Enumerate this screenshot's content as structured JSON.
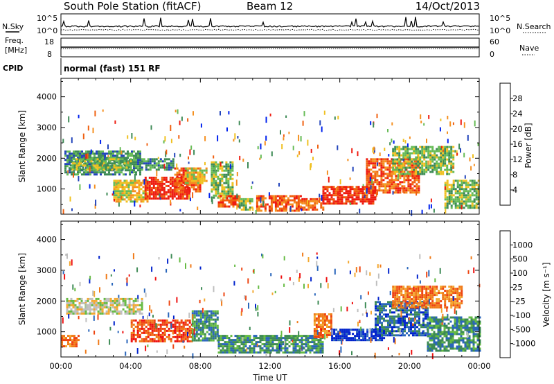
{
  "header": {
    "station": "South Pole Station (fitACF)",
    "beam": "Beam 12",
    "date": "14/Oct/2013"
  },
  "top_panels": {
    "nsky_label": "N.Sky",
    "nsky_ticks": [
      "10^5",
      "10^0"
    ],
    "nsearch_label": "N.Search",
    "nsearch_ticks": [
      "10^5",
      "10^0"
    ],
    "freq_label_1": "Freq.",
    "freq_label_2": "[MHz]",
    "freq_ticks": [
      "18",
      "8"
    ],
    "nave_label": "Nave",
    "nave_ticks": [
      "60",
      "0"
    ],
    "cpid_label": "CPID",
    "cpid_text": "normal (fast) 151 RF"
  },
  "colors": {
    "power": [
      "#0022ee",
      "#2244bb",
      "#3d8a55",
      "#66bb55",
      "#f0c020",
      "#f59020",
      "#f06010",
      "#ee1c10"
    ],
    "velocity": [
      "#ee1010",
      "#ee4410",
      "#f07a18",
      "#f3a830",
      "#bfbfbf",
      "#66bb44",
      "#3d8a55",
      "#2a66bb",
      "#0022cc"
    ]
  },
  "chart_data": [
    {
      "type": "heatmap",
      "name": "power",
      "ylabel": "Slant Range [km]",
      "yticks": [
        1000,
        2000,
        3000,
        4000
      ],
      "ylim": [
        180,
        4600
      ],
      "colorbar_label": "Power [dB]",
      "colorbar_ticks": [
        "4",
        "8",
        "12",
        "16",
        "20",
        "24",
        "28"
      ],
      "regions": [
        {
          "x0": 0.2,
          "x1": 4.6,
          "y0": 1500,
          "y1": 2250,
          "level": 2
        },
        {
          "x0": 0.5,
          "x1": 4.0,
          "y0": 1600,
          "y1": 2000,
          "level": 3
        },
        {
          "x0": 4.6,
          "x1": 6.5,
          "y0": 1600,
          "y1": 2000,
          "level": 2
        },
        {
          "x0": 3.0,
          "x1": 5.0,
          "y0": 600,
          "y1": 1300,
          "level": 4
        },
        {
          "x0": 4.8,
          "x1": 7.4,
          "y0": 700,
          "y1": 1400,
          "level": 7
        },
        {
          "x0": 6.5,
          "x1": 8.0,
          "y0": 900,
          "y1": 1700,
          "level": 6
        },
        {
          "x0": 7.1,
          "x1": 8.3,
          "y0": 1200,
          "y1": 1700,
          "level": 4
        },
        {
          "x0": 8.6,
          "x1": 9.8,
          "y0": 700,
          "y1": 1900,
          "level": 3
        },
        {
          "x0": 9.0,
          "x1": 10.2,
          "y0": 400,
          "y1": 800,
          "level": 6
        },
        {
          "x0": 10.2,
          "x1": 11.0,
          "y0": 300,
          "y1": 700,
          "level": 3
        },
        {
          "x0": 11.2,
          "x1": 13.8,
          "y0": 300,
          "y1": 800,
          "level": 6
        },
        {
          "x0": 13.8,
          "x1": 15.0,
          "y0": 300,
          "y1": 700,
          "level": 6
        },
        {
          "x0": 15.0,
          "x1": 18.0,
          "y0": 500,
          "y1": 1100,
          "level": 7
        },
        {
          "x0": 17.5,
          "x1": 20.5,
          "y0": 900,
          "y1": 2000,
          "level": 6
        },
        {
          "x0": 19.0,
          "x1": 22.5,
          "y0": 1500,
          "y1": 2400,
          "level": 3
        },
        {
          "x0": 22.0,
          "x1": 24.0,
          "y0": 400,
          "y1": 1300,
          "level": 3
        }
      ]
    },
    {
      "type": "heatmap",
      "name": "velocity",
      "ylabel": "Slant Range [km]",
      "xlabel": "Time UT",
      "xticks": [
        "00:00",
        "04:00",
        "08:00",
        "12:00",
        "16:00",
        "20:00",
        "00:00"
      ],
      "xlim": [
        0,
        24
      ],
      "yticks": [
        1000,
        2000,
        3000,
        4000
      ],
      "ylim": [
        180,
        4600
      ],
      "colorbar_label": "Velocity [m s⁻¹]",
      "colorbar_ticks": [
        "1000",
        "500",
        "100",
        "25",
        "-25",
        "-100",
        "-500",
        "-1000"
      ],
      "regions": [
        {
          "x0": 0.3,
          "x1": 4.7,
          "y0": 1600,
          "y1": 2100,
          "level": 4
        },
        {
          "x0": 0.0,
          "x1": 1.0,
          "y0": 500,
          "y1": 900,
          "level": 2
        },
        {
          "x0": 4.0,
          "x1": 7.5,
          "y0": 700,
          "y1": 1400,
          "level": 1
        },
        {
          "x0": 7.5,
          "x1": 9.0,
          "y0": 700,
          "y1": 1700,
          "level": 6
        },
        {
          "x0": 9.0,
          "x1": 15.0,
          "y0": 300,
          "y1": 900,
          "level": 6
        },
        {
          "x0": 14.5,
          "x1": 15.5,
          "y0": 800,
          "y1": 1600,
          "level": 2
        },
        {
          "x0": 15.5,
          "x1": 18.5,
          "y0": 700,
          "y1": 1100,
          "level": 8
        },
        {
          "x0": 18.0,
          "x1": 21.0,
          "y0": 900,
          "y1": 2000,
          "level": 7
        },
        {
          "x0": 19.0,
          "x1": 23.0,
          "y0": 1800,
          "y1": 2500,
          "level": 2
        },
        {
          "x0": 21.0,
          "x1": 24.0,
          "y0": 400,
          "y1": 1500,
          "level": 6
        }
      ]
    }
  ]
}
